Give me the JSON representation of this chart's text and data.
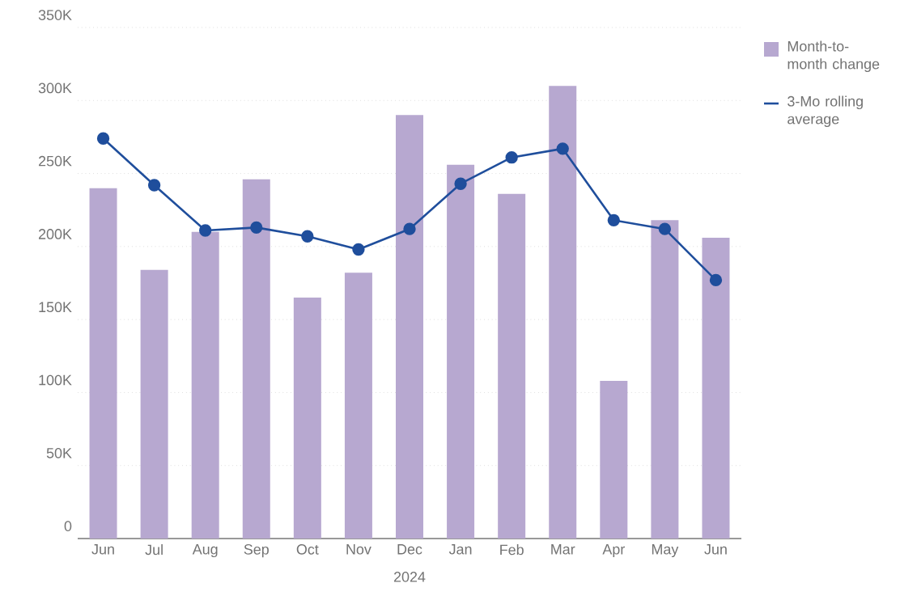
{
  "chart_data": {
    "type": "bar",
    "categories": [
      "Jun",
      "Jul",
      "Aug",
      "Sep",
      "Oct",
      "Nov",
      "Dec",
      "Jan",
      "Feb",
      "Mar",
      "Apr",
      "May",
      "Jun"
    ],
    "series": [
      {
        "name": "Month-to-month change",
        "type": "bar",
        "color": "#b7a8d0",
        "values": [
          240000,
          184000,
          210000,
          246000,
          165000,
          182000,
          290000,
          256000,
          236000,
          310000,
          108000,
          218000,
          206000
        ]
      },
      {
        "name": "3-Mo rolling average",
        "type": "line",
        "color": "#1f4e9c",
        "marker": "circle",
        "values": [
          274000,
          242000,
          211000,
          213000,
          207000,
          198000,
          212000,
          243000,
          261000,
          267000,
          218000,
          212000,
          177000
        ]
      }
    ],
    "ylim": [
      0,
      350000
    ],
    "yticks": [
      0,
      {
        "value": 50000,
        "label": "50K"
      },
      {
        "value": 100000,
        "label": "100K"
      },
      {
        "value": 150000,
        "label": "150K"
      },
      {
        "value": 200000,
        "label": "200K"
      },
      {
        "value": 250000,
        "label": "250K"
      },
      {
        "value": 300000,
        "label": "300K"
      },
      {
        "value": 350000,
        "label": "350K"
      }
    ],
    "grid": "y",
    "legend": "top right",
    "annotations": [
      "2024"
    ]
  }
}
